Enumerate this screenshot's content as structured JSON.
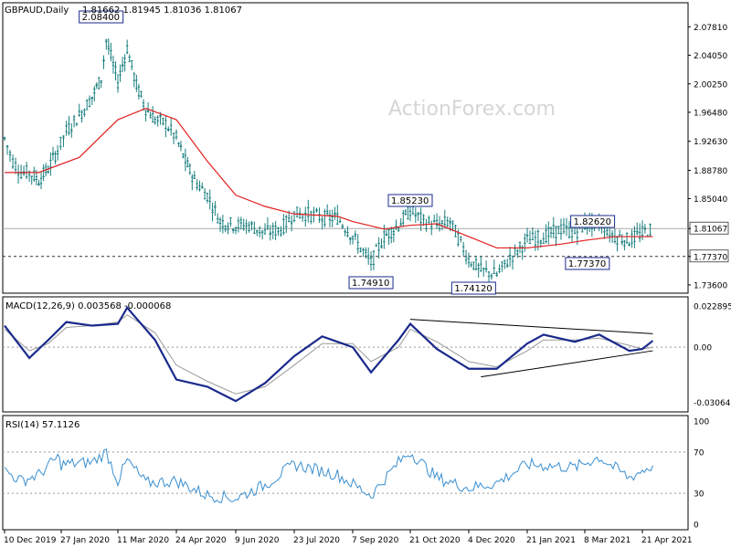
{
  "header": {
    "symbol": "GBPAUD,Daily",
    "ohlc": "1.81662 1.81945 1.81036 1.81067"
  },
  "watermark": "ActionForex.com",
  "colors": {
    "candles": "#1a7f7f",
    "ma": "#e02020",
    "macd": "#1a2a8c",
    "signal": "#9a9a9a",
    "rsi": "#3a8fd0",
    "axis": "#000000",
    "dotted": "#999999"
  },
  "chart_data": [
    {
      "type": "candlestick",
      "panel": "price",
      "y_ticks": [
        "2.07810",
        "2.04050",
        "2.00250",
        "1.96480",
        "1.92630",
        "1.88780",
        "1.85040",
        "1.81067",
        "1.77370",
        "1.73600"
      ],
      "ylim": [
        1.725,
        2.11
      ],
      "last_price": "1.81067",
      "horizontal_levels": [
        {
          "value": 1.7737,
          "label": "1.77370",
          "style": "dashed"
        },
        {
          "value": 1.81067,
          "label": "1.81067",
          "style": "solid"
        }
      ],
      "annotations": [
        {
          "text": "2.08400",
          "x": "27 Feb 2020",
          "y": 2.084
        },
        {
          "text": "1.74910",
          "x": "21 Sep 2020",
          "y": 1.7491
        },
        {
          "text": "1.85230",
          "x": "21 Oct 2020",
          "y": 1.8523
        },
        {
          "text": "1.74120",
          "x": "8 Dec 2020",
          "y": 1.7412
        },
        {
          "text": "1.82620",
          "x": "14 Mar 2021",
          "y": 1.8262
        },
        {
          "text": "1.77370",
          "x": "10 Mar 2021",
          "y": 1.7737
        }
      ],
      "close_series": [
        {
          "x": "10 Dec 2019",
          "y": 1.93
        },
        {
          "x": "17 Dec 2019",
          "y": 1.9
        },
        {
          "x": "24 Dec 2019",
          "y": 1.885
        },
        {
          "x": "31 Dec 2019",
          "y": 1.885
        },
        {
          "x": "8 Jan 2020",
          "y": 1.875
        },
        {
          "x": "16 Jan 2020",
          "y": 1.89
        },
        {
          "x": "24 Jan 2020",
          "y": 1.915
        },
        {
          "x": "31 Jan 2020",
          "y": 1.94
        },
        {
          "x": "10 Feb 2020",
          "y": 1.96
        },
        {
          "x": "20 Feb 2020",
          "y": 1.985
        },
        {
          "x": "27 Feb 2020",
          "y": 2.01
        },
        {
          "x": "2 Mar 2020",
          "y": 2.06
        },
        {
          "x": "11 Mar 2020",
          "y": 2.005
        },
        {
          "x": "18 Mar 2020",
          "y": 2.05
        },
        {
          "x": "25 Mar 2020",
          "y": 2.0
        },
        {
          "x": "1 Apr 2020",
          "y": 1.97
        },
        {
          "x": "8 Apr 2020",
          "y": 1.955
        },
        {
          "x": "16 Apr 2020",
          "y": 1.95
        },
        {
          "x": "24 Apr 2020",
          "y": 1.93
        },
        {
          "x": "1 May 2020",
          "y": 1.9
        },
        {
          "x": "8 May 2020",
          "y": 1.875
        },
        {
          "x": "18 May 2020",
          "y": 1.855
        },
        {
          "x": "28 May 2020",
          "y": 1.82
        },
        {
          "x": "9 Jun 2020",
          "y": 1.815
        },
        {
          "x": "19 Jun 2020",
          "y": 1.815
        },
        {
          "x": "1 Jul 2020",
          "y": 1.805
        },
        {
          "x": "13 Jul 2020",
          "y": 1.81
        },
        {
          "x": "23 Jul 2020",
          "y": 1.83
        },
        {
          "x": "3 Aug 2020",
          "y": 1.83
        },
        {
          "x": "14 Aug 2020",
          "y": 1.825
        },
        {
          "x": "26 Aug 2020",
          "y": 1.825
        },
        {
          "x": "7 Sep 2020",
          "y": 1.8
        },
        {
          "x": "21 Sep 2020",
          "y": 1.765
        },
        {
          "x": "1 Oct 2020",
          "y": 1.8
        },
        {
          "x": "12 Oct 2020",
          "y": 1.815
        },
        {
          "x": "21 Oct 2020",
          "y": 1.835
        },
        {
          "x": "31 Oct 2020",
          "y": 1.82
        },
        {
          "x": "10 Nov 2020",
          "y": 1.815
        },
        {
          "x": "20 Nov 2020",
          "y": 1.82
        },
        {
          "x": "4 Dec 2020",
          "y": 1.77
        },
        {
          "x": "14 Dec 2020",
          "y": 1.755
        },
        {
          "x": "27 Dec 2020",
          "y": 1.75
        },
        {
          "x": "9 Jan 2021",
          "y": 1.775
        },
        {
          "x": "21 Jan 2021",
          "y": 1.795
        },
        {
          "x": "3 Feb 2021",
          "y": 1.8
        },
        {
          "x": "17 Feb 2021",
          "y": 1.81
        },
        {
          "x": "28 Feb 2021",
          "y": 1.805
        },
        {
          "x": "8 Mar 2021",
          "y": 1.815
        },
        {
          "x": "19 Mar 2021",
          "y": 1.82
        },
        {
          "x": "31 Mar 2021",
          "y": 1.8
        },
        {
          "x": "11 Apr 2021",
          "y": 1.795
        },
        {
          "x": "21 Apr 2021",
          "y": 1.805
        },
        {
          "x": "29 Apr 2021",
          "y": 1.8107
        }
      ],
      "ma_series": [
        {
          "x": "10 Dec 2019",
          "y": 1.885
        },
        {
          "x": "8 Jan 2020",
          "y": 1.885
        },
        {
          "x": "10 Feb 2020",
          "y": 1.905
        },
        {
          "x": "11 Mar 2020",
          "y": 1.955
        },
        {
          "x": "1 Apr 2020",
          "y": 1.97
        },
        {
          "x": "24 Apr 2020",
          "y": 1.955
        },
        {
          "x": "18 May 2020",
          "y": 1.9
        },
        {
          "x": "9 Jun 2020",
          "y": 1.855
        },
        {
          "x": "1 Jul 2020",
          "y": 1.84
        },
        {
          "x": "23 Jul 2020",
          "y": 1.83
        },
        {
          "x": "26 Aug 2020",
          "y": 1.827
        },
        {
          "x": "7 Sep 2020",
          "y": 1.82
        },
        {
          "x": "1 Oct 2020",
          "y": 1.81
        },
        {
          "x": "21 Oct 2020",
          "y": 1.815
        },
        {
          "x": "10 Nov 2020",
          "y": 1.817
        },
        {
          "x": "4 Dec 2020",
          "y": 1.8
        },
        {
          "x": "27 Dec 2020",
          "y": 1.785
        },
        {
          "x": "21 Jan 2021",
          "y": 1.785
        },
        {
          "x": "17 Feb 2021",
          "y": 1.79
        },
        {
          "x": "8 Mar 2021",
          "y": 1.795
        },
        {
          "x": "31 Mar 2021",
          "y": 1.8
        },
        {
          "x": "21 Apr 2021",
          "y": 1.8
        },
        {
          "x": "29 Apr 2021",
          "y": 1.8
        }
      ]
    },
    {
      "type": "line",
      "panel": "macd",
      "title": "MACD(12,26,9) 0.003568 -0.000068",
      "y_ticks": [
        "0.022895",
        "0.00",
        "-0.030645"
      ],
      "ylim": [
        -0.034,
        0.026
      ],
      "series": [
        {
          "values": [
            {
              "x": "10 Dec 2019",
              "y": 0.012
            },
            {
              "x": "31 Dec 2019",
              "y": -0.006
            },
            {
              "x": "16 Jan 2020",
              "y": 0.004
            },
            {
              "x": "31 Jan 2020",
              "y": 0.014
            },
            {
              "x": "20 Feb 2020",
              "y": 0.012
            },
            {
              "x": "11 Mar 2020",
              "y": 0.013
            },
            {
              "x": "18 Mar 2020",
              "y": 0.022
            },
            {
              "x": "8 Apr 2020",
              "y": 0.004
            },
            {
              "x": "24 Apr 2020",
              "y": -0.018
            },
            {
              "x": "18 May 2020",
              "y": -0.022
            },
            {
              "x": "9 Jun 2020",
              "y": -0.03
            },
            {
              "x": "1 Jul 2020",
              "y": -0.02
            },
            {
              "x": "23 Jul 2020",
              "y": -0.005
            },
            {
              "x": "14 Aug 2020",
              "y": 0.006
            },
            {
              "x": "7 Sep 2020",
              "y": 0.0
            },
            {
              "x": "21 Sep 2020",
              "y": -0.014
            },
            {
              "x": "12 Oct 2020",
              "y": 0.004
            },
            {
              "x": "21 Oct 2020",
              "y": 0.013
            },
            {
              "x": "10 Nov 2020",
              "y": -0.001
            },
            {
              "x": "4 Dec 2020",
              "y": -0.012
            },
            {
              "x": "27 Dec 2020",
              "y": -0.012
            },
            {
              "x": "21 Jan 2021",
              "y": 0.002
            },
            {
              "x": "3 Feb 2021",
              "y": 0.007
            },
            {
              "x": "28 Feb 2021",
              "y": 0.003
            },
            {
              "x": "19 Mar 2021",
              "y": 0.007
            },
            {
              "x": "11 Apr 2021",
              "y": -0.002
            },
            {
              "x": "21 Apr 2021",
              "y": -0.001
            },
            {
              "x": "29 Apr 2021",
              "y": 0.0036
            }
          ]
        },
        {
          "values": [
            {
              "x": "10 Dec 2019",
              "y": 0.01
            },
            {
              "x": "31 Dec 2019",
              "y": -0.002
            },
            {
              "x": "16 Jan 2020",
              "y": 0.002
            },
            {
              "x": "31 Jan 2020",
              "y": 0.011
            },
            {
              "x": "20 Feb 2020",
              "y": 0.012
            },
            {
              "x": "11 Mar 2020",
              "y": 0.014
            },
            {
              "x": "18 Mar 2020",
              "y": 0.018
            },
            {
              "x": "8 Apr 2020",
              "y": 0.008
            },
            {
              "x": "24 Apr 2020",
              "y": -0.01
            },
            {
              "x": "18 May 2020",
              "y": -0.019
            },
            {
              "x": "9 Jun 2020",
              "y": -0.026
            },
            {
              "x": "1 Jul 2020",
              "y": -0.022
            },
            {
              "x": "23 Jul 2020",
              "y": -0.01
            },
            {
              "x": "14 Aug 2020",
              "y": 0.002
            },
            {
              "x": "7 Sep 2020",
              "y": 0.002
            },
            {
              "x": "21 Sep 2020",
              "y": -0.008
            },
            {
              "x": "12 Oct 2020",
              "y": 0.0
            },
            {
              "x": "21 Oct 2020",
              "y": 0.01
            },
            {
              "x": "10 Nov 2020",
              "y": 0.003
            },
            {
              "x": "4 Dec 2020",
              "y": -0.008
            },
            {
              "x": "27 Dec 2020",
              "y": -0.011
            },
            {
              "x": "21 Jan 2021",
              "y": -0.002
            },
            {
              "x": "3 Feb 2021",
              "y": 0.004
            },
            {
              "x": "28 Feb 2021",
              "y": 0.004
            },
            {
              "x": "19 Mar 2021",
              "y": 0.005
            },
            {
              "x": "11 Apr 2021",
              "y": 0.001
            },
            {
              "x": "21 Apr 2021",
              "y": -0.001
            },
            {
              "x": "29 Apr 2021",
              "y": -0.0001
            }
          ]
        }
      ],
      "trendlines": [
        {
          "from": {
            "x": "21 Oct 2020",
            "y": 0.0155
          },
          "to": {
            "x": "29 Apr 2021",
            "y": 0.0075
          }
        },
        {
          "from": {
            "x": "14 Dec 2020",
            "y": -0.0165
          },
          "to": {
            "x": "29 Apr 2021",
            "y": -0.002
          }
        }
      ]
    },
    {
      "type": "line",
      "panel": "rsi",
      "title": "RSI(14) 57.1126",
      "y_ticks": [
        "100",
        "70",
        "30",
        "0"
      ],
      "ylim": [
        0,
        100
      ],
      "levels": [
        70,
        30
      ],
      "series": [
        {
          "values": [
            {
              "x": "10 Dec 2019",
              "y": 52
            },
            {
              "x": "24 Dec 2019",
              "y": 42
            },
            {
              "x": "8 Jan 2020",
              "y": 48
            },
            {
              "x": "24 Jan 2020",
              "y": 65
            },
            {
              "x": "27 Jan 2020",
              "y": 58
            },
            {
              "x": "20 Feb 2020",
              "y": 60
            },
            {
              "x": "2 Mar 2020",
              "y": 70
            },
            {
              "x": "11 Mar 2020",
              "y": 42
            },
            {
              "x": "18 Mar 2020",
              "y": 62
            },
            {
              "x": "1 Apr 2020",
              "y": 40
            },
            {
              "x": "24 Apr 2020",
              "y": 42
            },
            {
              "x": "18 May 2020",
              "y": 28
            },
            {
              "x": "9 Jun 2020",
              "y": 25
            },
            {
              "x": "1 Jul 2020",
              "y": 38
            },
            {
              "x": "23 Jul 2020",
              "y": 58
            },
            {
              "x": "26 Aug 2020",
              "y": 48
            },
            {
              "x": "21 Sep 2020",
              "y": 28
            },
            {
              "x": "12 Oct 2020",
              "y": 60
            },
            {
              "x": "21 Oct 2020",
              "y": 70
            },
            {
              "x": "10 Nov 2020",
              "y": 45
            },
            {
              "x": "4 Dec 2020",
              "y": 35
            },
            {
              "x": "27 Dec 2020",
              "y": 40
            },
            {
              "x": "21 Jan 2021",
              "y": 58
            },
            {
              "x": "28 Feb 2021",
              "y": 55
            },
            {
              "x": "19 Mar 2021",
              "y": 65
            },
            {
              "x": "11 Apr 2021",
              "y": 45
            },
            {
              "x": "21 Apr 2021",
              "y": 52
            },
            {
              "x": "29 Apr 2021",
              "y": 57
            }
          ]
        }
      ]
    }
  ],
  "x_ticks": [
    "10 Dec 2019",
    "27 Jan 2020",
    "11 Mar 2020",
    "24 Apr 2020",
    "9 Jun 2020",
    "23 Jul 2020",
    "7 Sep 2020",
    "21 Oct 2020",
    "4 Dec 2020",
    "21 Jan 2021",
    "8 Mar 2021",
    "21 Apr 2021"
  ]
}
